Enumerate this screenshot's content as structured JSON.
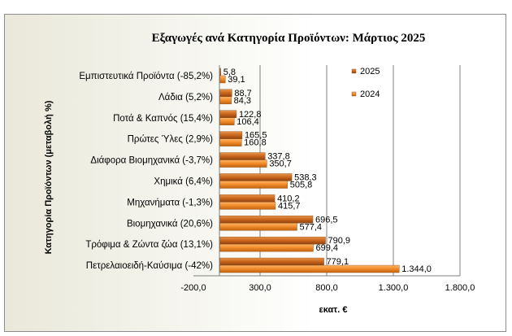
{
  "chart_data": {
    "type": "bar",
    "orientation": "horizontal",
    "title": "Εξαγωγές ανά Κατηγορία Προϊόντων:  Μάρτιος 2025",
    "xlabel": "εκατ. €",
    "ylabel": "Κατηγορία Προϊόντων (μεταβολή %)",
    "xlim": [
      -200,
      1800
    ],
    "xticks": [
      "-200,0",
      "300,0",
      "800,0",
      "1.300,0",
      "1.800,0"
    ],
    "grid": true,
    "legend_position": "right",
    "categories": [
      "Εμπιστευτικά Προϊόντα (-85,2%)",
      "Λάδια (5,2%)",
      "Ποτά & Καπνός (15,4%)",
      "Πρώτες Ύλες (2,9%)",
      "Διάφορα Βιομηχανικά (-3,7%)",
      "Χημικά (6,4%)",
      "Μηχανήματα (-1,3%)",
      "Βιομηχανικά (20,6%)",
      "Τρόφιμα & Ζώντα ζώα (13,1%)",
      "Πετρελαιοειδή-Καύσιμα (-42%)"
    ],
    "series": [
      {
        "name": "2025",
        "color": "#c8651b",
        "values": [
          5.8,
          88.7,
          122.8,
          165.5,
          337.8,
          538.3,
          410.2,
          696.5,
          790.9,
          779.1
        ],
        "labels": [
          "5,8",
          "88,7",
          "122,8",
          "165,5",
          "337,8",
          "538,3",
          "410,2",
          "696,5",
          "790,9",
          "779,1"
        ]
      },
      {
        "name": "2024",
        "color": "#f08a28",
        "values": [
          39.1,
          84.3,
          106.4,
          160.8,
          350.7,
          505.8,
          415.7,
          577.4,
          699.4,
          1344.0
        ],
        "labels": [
          "39,1",
          "84,3",
          "106,4",
          "160,8",
          "350,7",
          "505,8",
          "415,7",
          "577,4",
          "699,4",
          "1.344,0"
        ]
      }
    ]
  }
}
